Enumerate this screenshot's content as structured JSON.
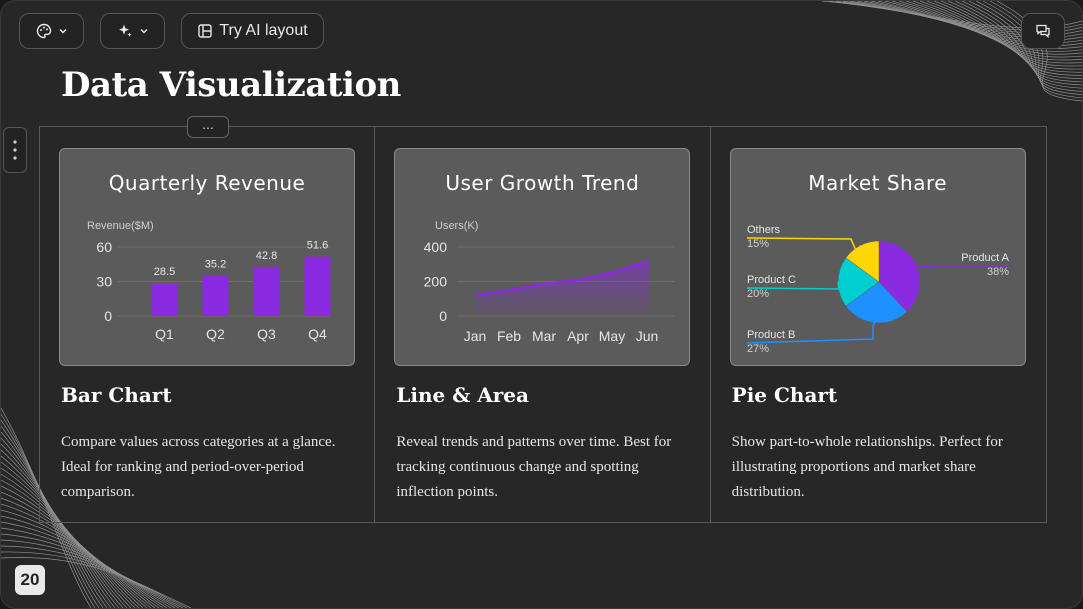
{
  "toolbar": {
    "theme_button_icon": "palette-icon",
    "ai_button_icon": "sparkle-icon",
    "ai_layout_label": "Try AI layout",
    "comment_icon": "comment-icon"
  },
  "slide": {
    "title": "Data Visualization",
    "page_number": "20",
    "handle_label": "...",
    "accent": "#8A2BE2"
  },
  "columns": [
    {
      "card_title": "Quarterly Revenue",
      "heading": "Bar Chart",
      "description": "Compare values across categories at a glance. Ideal for ranking and period-over-period comparison."
    },
    {
      "card_title": "User Growth Trend",
      "heading": "Line & Area",
      "description": "Reveal trends and patterns over time. Best for tracking continuous change and spotting inflection points."
    },
    {
      "card_title": "Market Share",
      "heading": "Pie Chart",
      "description": "Show part-to-whole relationships. Perfect for illustrating proportions and market share distribution."
    }
  ],
  "chart_data": [
    {
      "type": "bar",
      "title": "Quarterly Revenue",
      "ylabel": "Revenue($M)",
      "categories": [
        "Q1",
        "Q2",
        "Q3",
        "Q4"
      ],
      "values": [
        28.5,
        35.2,
        42.8,
        51.6
      ],
      "yticks": [
        "0",
        "30",
        "60"
      ],
      "ylim": [
        0,
        60
      ],
      "color": "#8A2BE2"
    },
    {
      "type": "area",
      "title": "User Growth Trend",
      "ylabel": "Users(K)",
      "categories": [
        "Jan",
        "Feb",
        "Mar",
        "Apr",
        "May",
        "Jun"
      ],
      "values": [
        120,
        150,
        185,
        210,
        255,
        320
      ],
      "yticks": [
        "0",
        "200",
        "400"
      ],
      "ylim": [
        0,
        400
      ],
      "color": "#8A2BE2"
    },
    {
      "type": "pie",
      "title": "Market Share",
      "slices": [
        {
          "label": "Product A",
          "value": 38,
          "pct": "38%",
          "color": "#8A2BE2"
        },
        {
          "label": "Product B",
          "value": 27,
          "pct": "27%",
          "color": "#1E90FF"
        },
        {
          "label": "Product C",
          "value": 20,
          "pct": "20%",
          "color": "#00CED1"
        },
        {
          "label": "Others",
          "value": 15,
          "pct": "15%",
          "color": "#FFD700"
        }
      ]
    }
  ]
}
